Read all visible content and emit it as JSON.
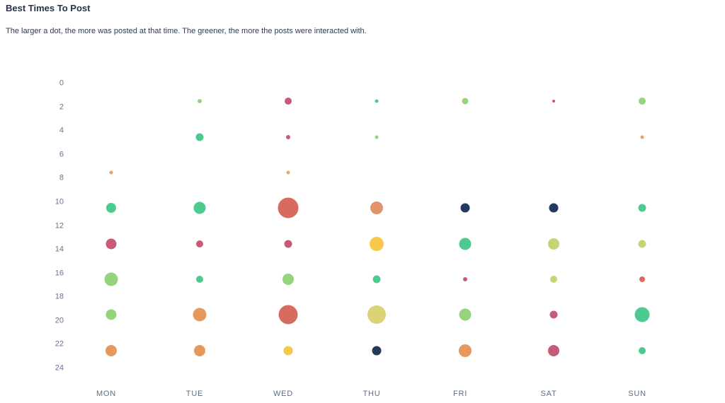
{
  "page": {
    "title": "Best Times To Post",
    "subtitle": "The larger a dot, the more was posted at that time. The greener, the more the posts were interacted with."
  },
  "chart_data": {
    "type": "scatter",
    "title": "Best Times To Post",
    "subtitle": "The larger a dot, the more was posted at that time. The greener, the more the posts were interacted with.",
    "legend": "none",
    "grid": "off",
    "x_axis": {
      "categories": [
        "MON",
        "TUE",
        "WED",
        "THU",
        "FRI",
        "SAT",
        "SUN"
      ]
    },
    "y_axis": {
      "unit": "hour of day",
      "ticks": [
        0,
        2,
        4,
        6,
        8,
        10,
        12,
        14,
        16,
        18,
        20,
        22,
        24
      ],
      "range": [
        0,
        24
      ]
    },
    "encoding": {
      "size": "amount posted at that time",
      "color": "interaction level (greener = more interaction)"
    },
    "palette": {
      "emerald": "#4dcb8e",
      "light_green": "#96d37d",
      "yellow_green": "#c3d674",
      "dull_yellow": "#dcd376",
      "yellow": "#f9c84a",
      "orange": "#e5995f",
      "light_orange": "#ee9d5f",
      "salmon_orange": "#e2936b",
      "salmon": "#d76b60",
      "crimson": "#c75a74",
      "navy": "#243a5c"
    },
    "points": [
      {
        "day": "MON",
        "hour": 7.5,
        "size": 5,
        "color": "#ee9d5f"
      },
      {
        "day": "MON",
        "hour": 10.5,
        "size": 14,
        "color": "#4dcb8e"
      },
      {
        "day": "MON",
        "hour": 13.5,
        "size": 15,
        "color": "#c75a74"
      },
      {
        "day": "MON",
        "hour": 16.5,
        "size": 19,
        "color": "#96d37d"
      },
      {
        "day": "MON",
        "hour": 19.5,
        "size": 15,
        "color": "#96d37d"
      },
      {
        "day": "MON",
        "hour": 22.5,
        "size": 16,
        "color": "#e5995f"
      },
      {
        "day": "TUE",
        "hour": 1.5,
        "size": 6,
        "color": "#96d37d"
      },
      {
        "day": "TUE",
        "hour": 4.5,
        "size": 11,
        "color": "#4dcb8e"
      },
      {
        "day": "TUE",
        "hour": 10.5,
        "size": 17,
        "color": "#4dcb8e"
      },
      {
        "day": "TUE",
        "hour": 13.5,
        "size": 10,
        "color": "#c75a74"
      },
      {
        "day": "TUE",
        "hour": 16.5,
        "size": 10,
        "color": "#4dcb8e"
      },
      {
        "day": "TUE",
        "hour": 19.5,
        "size": 19,
        "color": "#e5995f"
      },
      {
        "day": "TUE",
        "hour": 22.5,
        "size": 16,
        "color": "#e5995f"
      },
      {
        "day": "WED",
        "hour": 1.5,
        "size": 10,
        "color": "#c75a74"
      },
      {
        "day": "WED",
        "hour": 4.5,
        "size": 6,
        "color": "#c75a74"
      },
      {
        "day": "WED",
        "hour": 7.5,
        "size": 5,
        "color": "#f2a45c"
      },
      {
        "day": "WED",
        "hour": 10.5,
        "size": 29,
        "color": "#d76b60"
      },
      {
        "day": "WED",
        "hour": 13.5,
        "size": 11,
        "color": "#c75a74"
      },
      {
        "day": "WED",
        "hour": 16.5,
        "size": 16,
        "color": "#96d37d"
      },
      {
        "day": "WED",
        "hour": 19.5,
        "size": 27,
        "color": "#d76b60"
      },
      {
        "day": "WED",
        "hour": 22.5,
        "size": 13,
        "color": "#f9c84a"
      },
      {
        "day": "THU",
        "hour": 1.5,
        "size": 5,
        "color": "#4dcb8e"
      },
      {
        "day": "THU",
        "hour": 4.5,
        "size": 5,
        "color": "#96d37d"
      },
      {
        "day": "THU",
        "hour": 10.5,
        "size": 18,
        "color": "#e2936b"
      },
      {
        "day": "THU",
        "hour": 13.5,
        "size": 20,
        "color": "#f9c84a"
      },
      {
        "day": "THU",
        "hour": 16.5,
        "size": 11,
        "color": "#4dcb8e"
      },
      {
        "day": "THU",
        "hour": 19.5,
        "size": 26,
        "color": "#dcd376"
      },
      {
        "day": "THU",
        "hour": 22.5,
        "size": 13,
        "color": "#243a5c"
      },
      {
        "day": "FRI",
        "hour": 1.5,
        "size": 9,
        "color": "#96d37d"
      },
      {
        "day": "FRI",
        "hour": 10.5,
        "size": 13,
        "color": "#243a5c"
      },
      {
        "day": "FRI",
        "hour": 13.5,
        "size": 17,
        "color": "#4dcb8e"
      },
      {
        "day": "FRI",
        "hour": 16.5,
        "size": 6,
        "color": "#c75a74"
      },
      {
        "day": "FRI",
        "hour": 19.5,
        "size": 17,
        "color": "#96d37d"
      },
      {
        "day": "FRI",
        "hour": 22.5,
        "size": 18,
        "color": "#e5995f"
      },
      {
        "day": "SAT",
        "hour": 1.5,
        "size": 4,
        "color": "#c75a74"
      },
      {
        "day": "SAT",
        "hour": 10.5,
        "size": 13,
        "color": "#243a5c"
      },
      {
        "day": "SAT",
        "hour": 13.5,
        "size": 16,
        "color": "#c3d674"
      },
      {
        "day": "SAT",
        "hour": 16.5,
        "size": 10,
        "color": "#c3d674"
      },
      {
        "day": "SAT",
        "hour": 19.5,
        "size": 11,
        "color": "#c75a74"
      },
      {
        "day": "SAT",
        "hour": 22.5,
        "size": 16,
        "color": "#c75a74"
      },
      {
        "day": "SUN",
        "hour": 1.5,
        "size": 10,
        "color": "#96d37d"
      },
      {
        "day": "SUN",
        "hour": 4.5,
        "size": 5,
        "color": "#ee9d5f"
      },
      {
        "day": "SUN",
        "hour": 10.5,
        "size": 11,
        "color": "#4dcb8e"
      },
      {
        "day": "SUN",
        "hour": 13.5,
        "size": 11,
        "color": "#c3d674"
      },
      {
        "day": "SUN",
        "hour": 16.5,
        "size": 8,
        "color": "#d76b60"
      },
      {
        "day": "SUN",
        "hour": 19.5,
        "size": 21,
        "color": "#4dcb8e"
      },
      {
        "day": "SUN",
        "hour": 22.5,
        "size": 10,
        "color": "#4dcb8e"
      }
    ]
  },
  "colors": {
    "background": "#ffffff",
    "title_text": "#27334d",
    "axis_text": "#647390",
    "day_label_text": "#5d6c84"
  }
}
